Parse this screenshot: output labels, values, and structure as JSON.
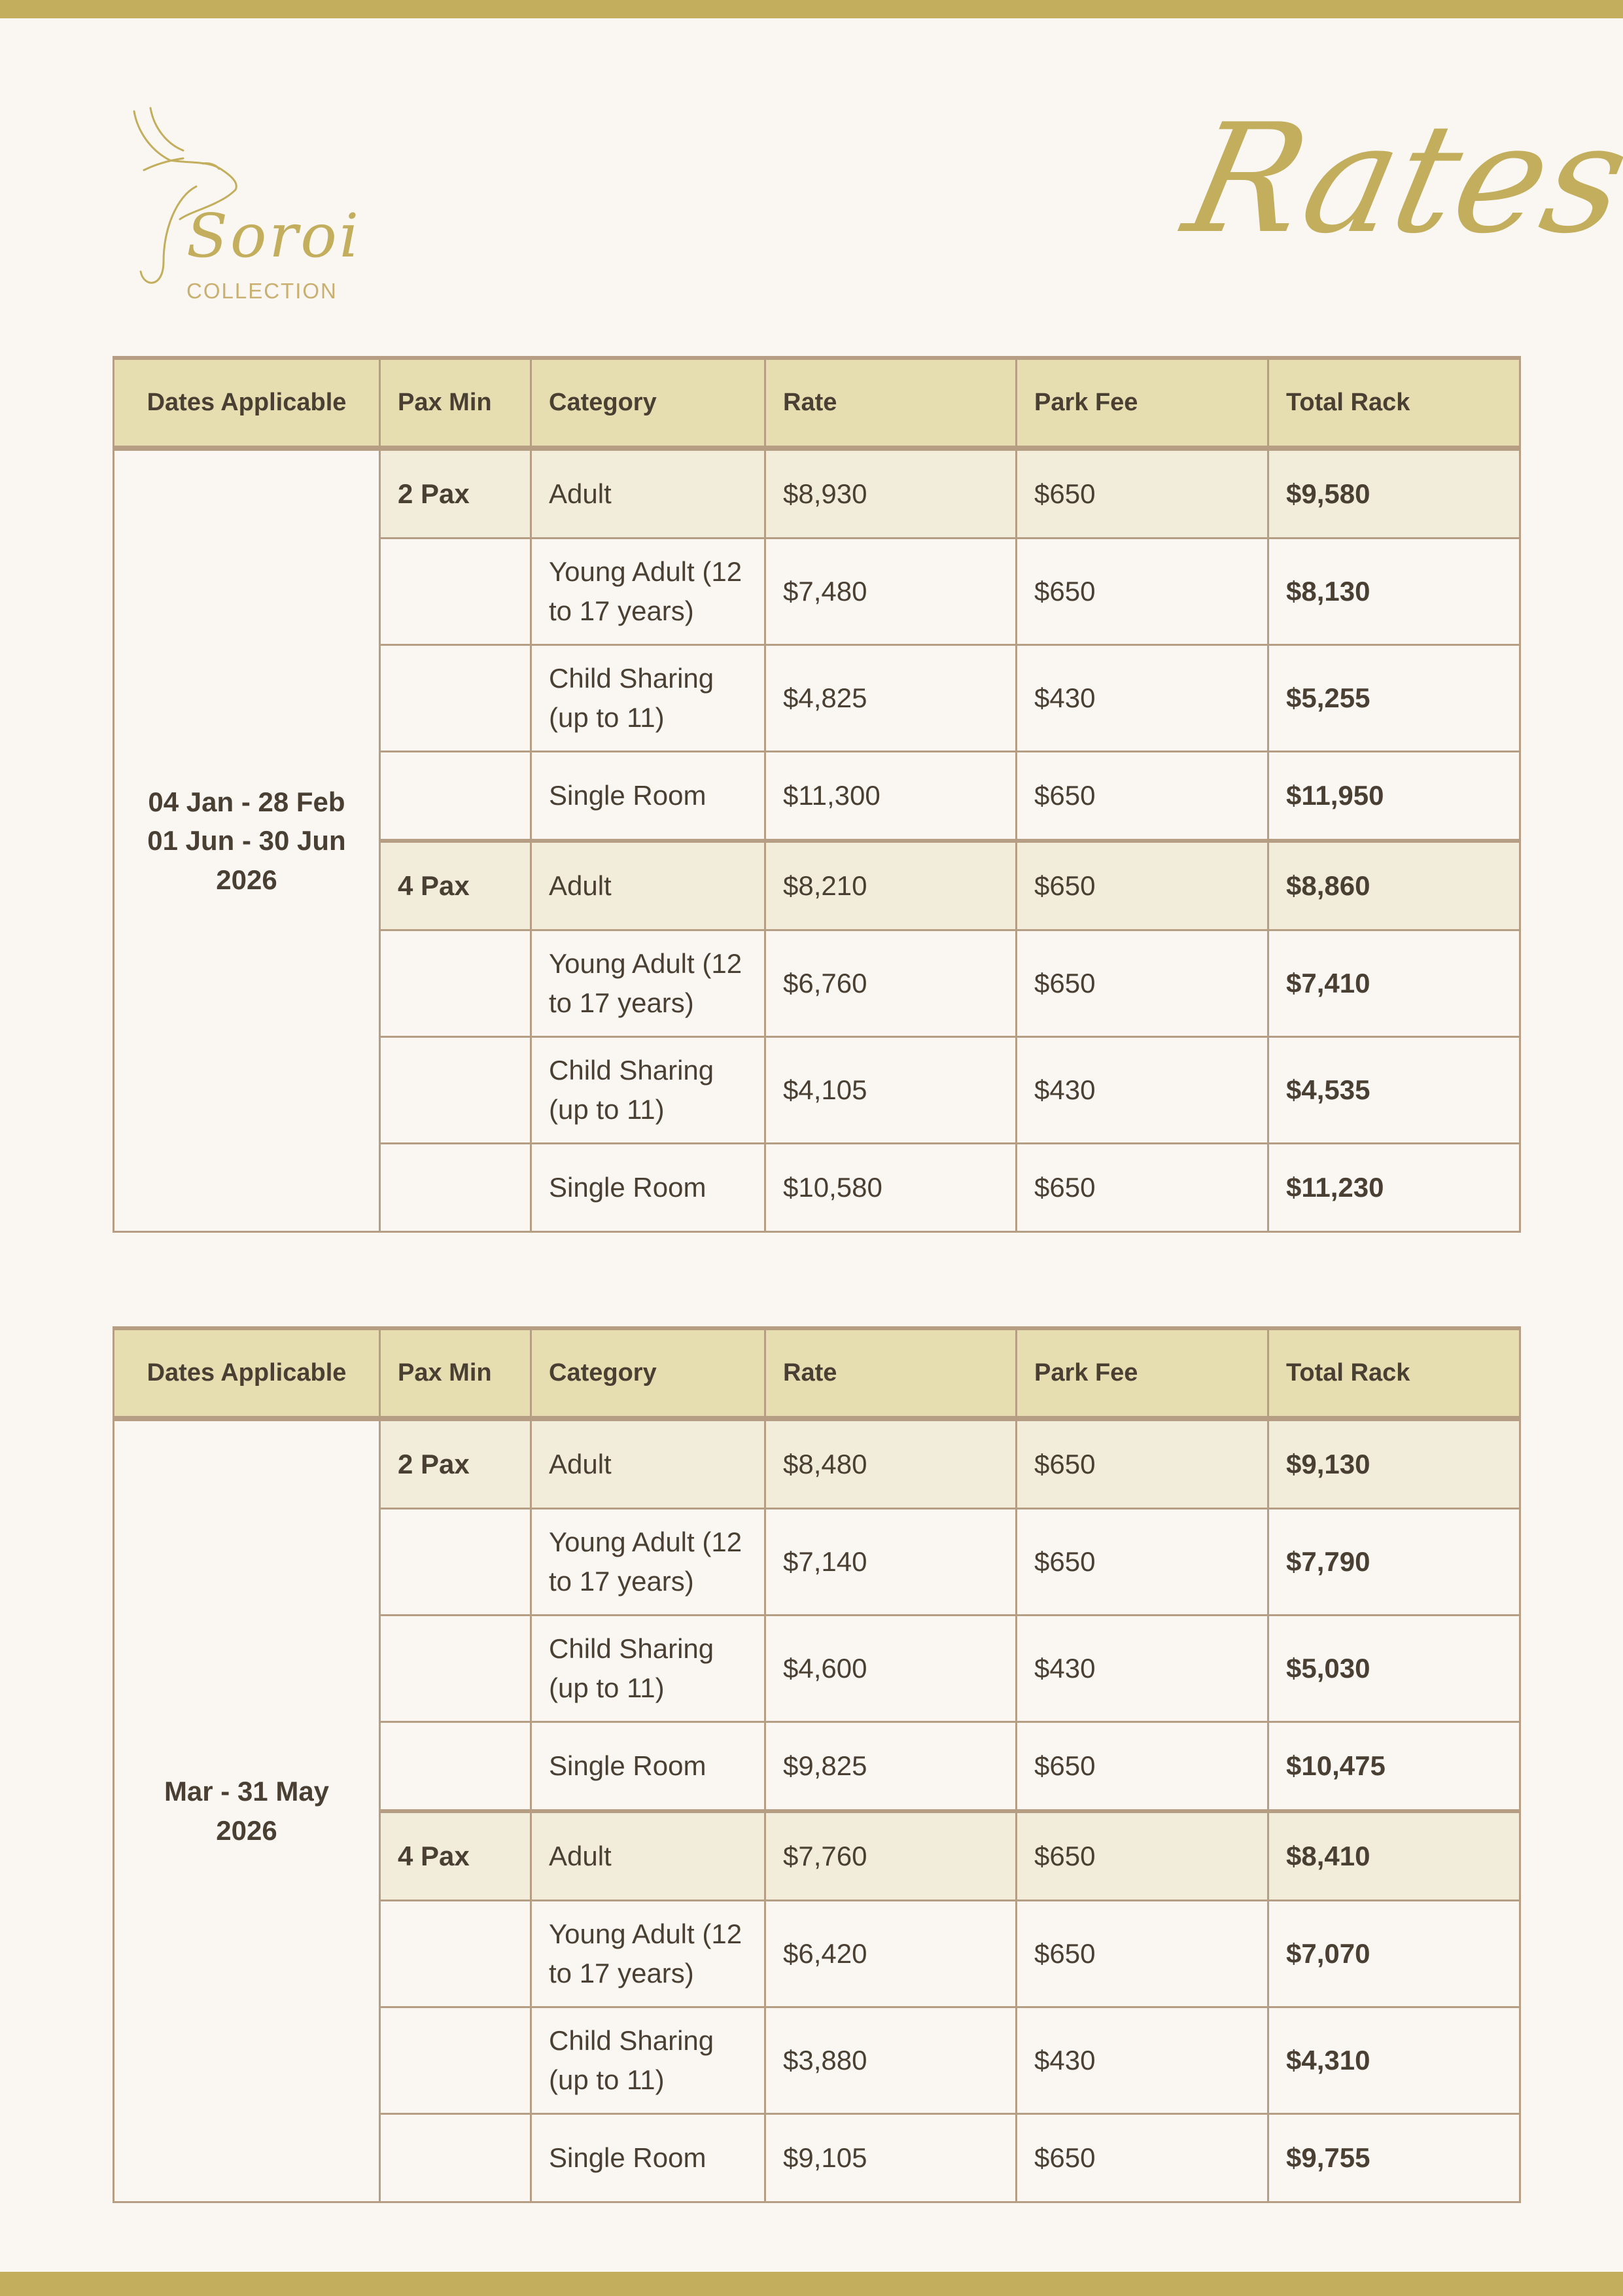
{
  "brand": {
    "logo_word": "Soroi",
    "logo_sub": "COLLECTION",
    "title": "Rates",
    "accent": "#c2ae5c",
    "header_bg": "#e6ddb0",
    "row_highlight": "#f2ecdb",
    "border": "#b59e84"
  },
  "columns": [
    "Dates Applicable",
    "Pax Min",
    "Category",
    "Rate",
    "Park Fee",
    "Total Rack"
  ],
  "tables": [
    {
      "dates": "04 Jan - 28 Feb 01 Jun - 30 Jun 2026",
      "groups": [
        {
          "pax": "2 Pax",
          "rows": [
            {
              "category": "Adult",
              "rate": "$8,930",
              "park_fee": "$650",
              "total": "$9,580"
            },
            {
              "category": "Young Adult (12 to 17 years)",
              "rate": "$7,480",
              "park_fee": "$650",
              "total": "$8,130"
            },
            {
              "category": "Child Sharing (up to 11)",
              "rate": "$4,825",
              "park_fee": "$430",
              "total": "$5,255"
            },
            {
              "category": "Single Room",
              "rate": "$11,300",
              "park_fee": "$650",
              "total": "$11,950"
            }
          ]
        },
        {
          "pax": "4 Pax",
          "rows": [
            {
              "category": "Adult",
              "rate": "$8,210",
              "park_fee": "$650",
              "total": "$8,860"
            },
            {
              "category": "Young Adult (12 to 17 years)",
              "rate": "$6,760",
              "park_fee": "$650",
              "total": "$7,410"
            },
            {
              "category": "Child Sharing (up to 11)",
              "rate": "$4,105",
              "park_fee": "$430",
              "total": "$4,535"
            },
            {
              "category": "Single Room",
              "rate": "$10,580",
              "park_fee": "$650",
              "total": "$11,230"
            }
          ]
        }
      ]
    },
    {
      "dates": "Mar - 31 May 2026",
      "groups": [
        {
          "pax": "2 Pax",
          "rows": [
            {
              "category": "Adult",
              "rate": "$8,480",
              "park_fee": "$650",
              "total": "$9,130"
            },
            {
              "category": "Young Adult (12 to 17 years)",
              "rate": "$7,140",
              "park_fee": "$650",
              "total": "$7,790"
            },
            {
              "category": "Child Sharing (up to 11)",
              "rate": "$4,600",
              "park_fee": "$430",
              "total": "$5,030"
            },
            {
              "category": "Single Room",
              "rate": "$9,825",
              "park_fee": "$650",
              "total": "$10,475"
            }
          ]
        },
        {
          "pax": "4 Pax",
          "rows": [
            {
              "category": "Adult",
              "rate": "$7,760",
              "park_fee": "$650",
              "total": "$8,410"
            },
            {
              "category": "Young Adult (12 to 17 years)",
              "rate": "$6,420",
              "park_fee": "$650",
              "total": "$7,070"
            },
            {
              "category": "Child Sharing (up to 11)",
              "rate": "$3,880",
              "park_fee": "$430",
              "total": "$4,310"
            },
            {
              "category": "Single Room",
              "rate": "$9,105",
              "park_fee": "$650",
              "total": "$9,755"
            }
          ]
        }
      ]
    }
  ]
}
